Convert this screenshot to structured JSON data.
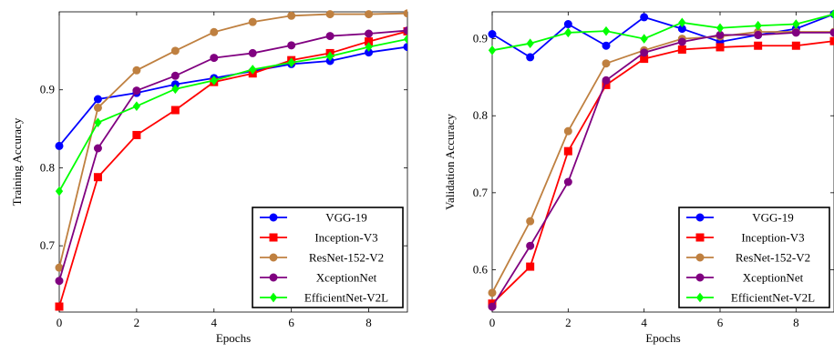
{
  "chart_data": [
    {
      "type": "line",
      "xlabel": "Epochs",
      "ylabel": "Training Accuracy",
      "xlim": [
        0,
        9
      ],
      "ylim": [
        0.615,
        1.0
      ],
      "xticks": [
        0,
        2,
        4,
        6,
        8
      ],
      "yticks": [
        0.7,
        0.8,
        0.9
      ],
      "grid": false,
      "legend": "bottom-right",
      "x": [
        0,
        1,
        2,
        3,
        4,
        5,
        6,
        7,
        8,
        9
      ],
      "series": [
        {
          "name": "VGG-19",
          "color": "#0000ff",
          "marker": "circle",
          "values": [
            0.828,
            0.888,
            0.896,
            0.907,
            0.915,
            0.924,
            0.933,
            0.937,
            0.948,
            0.955
          ]
        },
        {
          "name": "Inception-V3",
          "color": "#ff0000",
          "marker": "square",
          "values": [
            0.622,
            0.788,
            0.842,
            0.874,
            0.91,
            0.921,
            0.938,
            0.947,
            0.962,
            0.975
          ]
        },
        {
          "name": "ResNet-152-V2",
          "color": "#bf8040",
          "marker": "circle",
          "values": [
            0.672,
            0.877,
            0.925,
            0.95,
            0.974,
            0.987,
            0.995,
            0.997,
            0.997,
            0.998
          ]
        },
        {
          "name": "XceptionNet",
          "color": "#800080",
          "marker": "circle",
          "values": [
            0.655,
            0.825,
            0.899,
            0.918,
            0.941,
            0.947,
            0.957,
            0.969,
            0.972,
            0.976
          ]
        },
        {
          "name": "EfficientNet-V2L",
          "color": "#00ff00",
          "marker": "diamond",
          "values": [
            0.77,
            0.858,
            0.879,
            0.901,
            0.912,
            0.926,
            0.935,
            0.943,
            0.955,
            0.965
          ]
        }
      ]
    },
    {
      "type": "line",
      "xlabel": "Epochs",
      "ylabel": "Validation Accuracy",
      "xlim": [
        0,
        9
      ],
      "ylim": [
        0.545,
        0.935
      ],
      "xticks": [
        0,
        2,
        4,
        6,
        8
      ],
      "yticks": [
        0.6,
        0.7,
        0.8,
        0.9
      ],
      "grid": false,
      "legend": "bottom-right",
      "x": [
        0,
        1,
        2,
        3,
        4,
        5,
        6,
        7,
        8,
        9
      ],
      "series": [
        {
          "name": "VGG-19",
          "color": "#0000ff",
          "marker": "circle",
          "values": [
            0.906,
            0.876,
            0.919,
            0.891,
            0.928,
            0.913,
            0.896,
            0.905,
            0.913,
            0.932
          ]
        },
        {
          "name": "Inception-V3",
          "color": "#ff0000",
          "marker": "square",
          "values": [
            0.556,
            0.604,
            0.754,
            0.84,
            0.874,
            0.886,
            0.889,
            0.891,
            0.891,
            0.897
          ]
        },
        {
          "name": "ResNet-152-V2",
          "color": "#bf8040",
          "marker": "circle",
          "values": [
            0.57,
            0.663,
            0.78,
            0.868,
            0.885,
            0.9,
            0.903,
            0.909,
            0.909,
            0.909
          ]
        },
        {
          "name": "XceptionNet",
          "color": "#800080",
          "marker": "circle",
          "values": [
            0.552,
            0.631,
            0.714,
            0.846,
            0.882,
            0.896,
            0.905,
            0.905,
            0.908,
            0.908
          ]
        },
        {
          "name": "EfficientNet-V2L",
          "color": "#00ff00",
          "marker": "diamond",
          "values": [
            0.885,
            0.894,
            0.908,
            0.91,
            0.9,
            0.921,
            0.914,
            0.917,
            0.919,
            0.932
          ]
        }
      ]
    }
  ]
}
